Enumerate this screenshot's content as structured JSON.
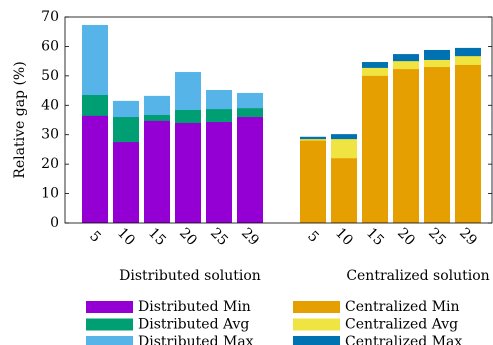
{
  "chart_data": {
    "type": "bar",
    "ylabel": "Relative gap (%)",
    "ylim": [
      0,
      70
    ],
    "yticks": [
      0,
      10,
      20,
      30,
      40,
      50,
      60,
      70
    ],
    "groups": [
      {
        "name": "Distributed solution",
        "categories": [
          "5",
          "10",
          "15",
          "20",
          "25",
          "29"
        ],
        "series": [
          {
            "name": "Distributed Min",
            "color": "#9400d3",
            "values": [
              36.4,
              27.5,
              34.7,
              34.0,
              34.3,
              36.0
            ]
          },
          {
            "name": "Distributed Avg",
            "color": "#009e73",
            "values": [
              43.5,
              36.0,
              36.7,
              38.4,
              38.7,
              39.0
            ]
          },
          {
            "name": "Distributed Max",
            "color": "#56b4e9",
            "values": [
              67.3,
              41.5,
              43.2,
              51.3,
              45.2,
              44.2
            ]
          }
        ]
      },
      {
        "name": "Centralized solution",
        "categories": [
          "5",
          "10",
          "15",
          "20",
          "25",
          "29"
        ],
        "series": [
          {
            "name": "Centralized Min",
            "color": "#e69f00",
            "values": [
              28.0,
              22.0,
              50.0,
              52.3,
              53.0,
              53.7
            ]
          },
          {
            "name": "Centralized Avg",
            "color": "#f0e442",
            "values": [
              28.5,
              28.5,
              52.7,
              55.0,
              55.4,
              56.7
            ]
          },
          {
            "name": "Centralized Max",
            "color": "#0072b2",
            "values": [
              29.3,
              30.2,
              54.7,
              57.4,
              58.8,
              59.5
            ]
          }
        ]
      }
    ]
  }
}
